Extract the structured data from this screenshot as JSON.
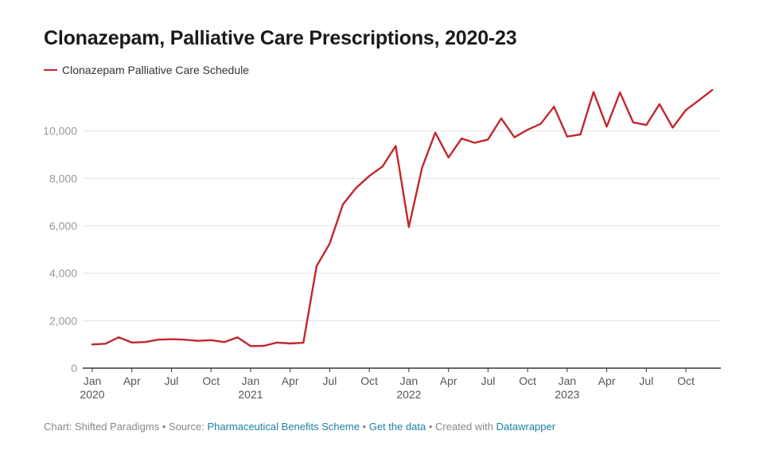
{
  "chart_data": {
    "type": "line",
    "title": "Clonazepam, Palliative Care Prescriptions, 2020-23",
    "series": [
      {
        "name": "Clonazepam Palliative Care Schedule",
        "color": "#c1272d",
        "values": [
          1000,
          1030,
          1300,
          1080,
          1100,
          1200,
          1220,
          1200,
          1150,
          1180,
          1100,
          1300,
          930,
          940,
          1080,
          1040,
          1070,
          4300,
          5250,
          6900,
          7600,
          8100,
          8500,
          9370,
          5950,
          8450,
          9930,
          8880,
          9680,
          9500,
          9640,
          10530,
          9730,
          10050,
          10300,
          11020,
          9760,
          9850,
          11640,
          10180,
          11620,
          10360,
          10250,
          11130,
          10140,
          10880,
          11300,
          11730
        ]
      }
    ],
    "x_start": "2020-01",
    "x_end": "2023-12",
    "x_tick_labels": [
      {
        "month": "Jan",
        "year": "2020",
        "index": 0
      },
      {
        "month": "Apr",
        "year": "",
        "index": 3
      },
      {
        "month": "Jul",
        "year": "",
        "index": 6
      },
      {
        "month": "Oct",
        "year": "",
        "index": 9
      },
      {
        "month": "Jan",
        "year": "2021",
        "index": 12
      },
      {
        "month": "Apr",
        "year": "",
        "index": 15
      },
      {
        "month": "Jul",
        "year": "",
        "index": 18
      },
      {
        "month": "Oct",
        "year": "",
        "index": 21
      },
      {
        "month": "Jan",
        "year": "2022",
        "index": 24
      },
      {
        "month": "Apr",
        "year": "",
        "index": 27
      },
      {
        "month": "Jul",
        "year": "",
        "index": 30
      },
      {
        "month": "Oct",
        "year": "",
        "index": 33
      },
      {
        "month": "Jan",
        "year": "2023",
        "index": 36
      },
      {
        "month": "Apr",
        "year": "",
        "index": 39
      },
      {
        "month": "Jul",
        "year": "",
        "index": 42
      },
      {
        "month": "Oct",
        "year": "",
        "index": 45
      }
    ],
    "y_ticks": [
      0,
      2000,
      4000,
      6000,
      8000,
      10000
    ],
    "y_tick_labels": [
      "0",
      "2,000",
      "4,000",
      "6,000",
      "8,000",
      "10,000"
    ],
    "ylim": [
      0,
      12000
    ],
    "grid": true,
    "legend_position": "top-left"
  },
  "footer": {
    "prefix": "Chart: Shifted Paradigms • Source: ",
    "source_link": "Pharmaceutical Benefits Scheme",
    "sep1": " • ",
    "data_link": "Get the data",
    "sep2": " • Created with ",
    "tool_link": "Datawrapper"
  }
}
